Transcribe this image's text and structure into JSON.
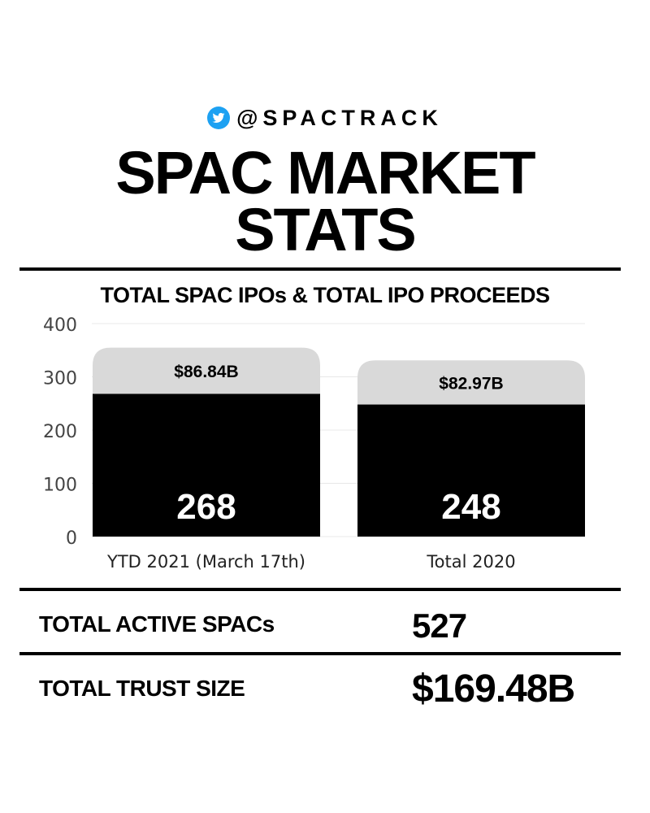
{
  "header": {
    "handle": "@SPACTRACK",
    "title_line1": "SPAC MARKET",
    "title_line2": "STATS"
  },
  "chart_data": {
    "type": "bar",
    "title": "TOTAL SPAC IPOs & TOTAL IPO PROCEEDS",
    "categories": [
      "YTD 2021 (March 17th)",
      "Total 2020"
    ],
    "series": [
      {
        "name": "",
        "values": [
          268,
          248
        ],
        "value_labels": [
          "268",
          "248"
        ],
        "color": "#000000"
      },
      {
        "name": "",
        "values": [
          86.84,
          82.97
        ],
        "value_labels": [
          "$86.84B",
          "$82.97B"
        ],
        "color": "#d9d9d9"
      }
    ],
    "ylim": [
      0,
      400
    ],
    "yticks": [
      0,
      100,
      200,
      300,
      400
    ],
    "grid": true,
    "xlabel": "",
    "ylabel": ""
  },
  "stats": [
    {
      "label": "TOTAL ACTIVE SPACs",
      "value": "527"
    },
    {
      "label": "TOTAL TRUST SIZE",
      "value": "$169.48B"
    }
  ],
  "colors": {
    "background": "#ffffff",
    "bar_primary": "#000000",
    "bar_secondary": "#d9d9d9",
    "twitter": "#1da1f2"
  },
  "icons": {
    "handle_icon": "twitter-bird-icon"
  }
}
